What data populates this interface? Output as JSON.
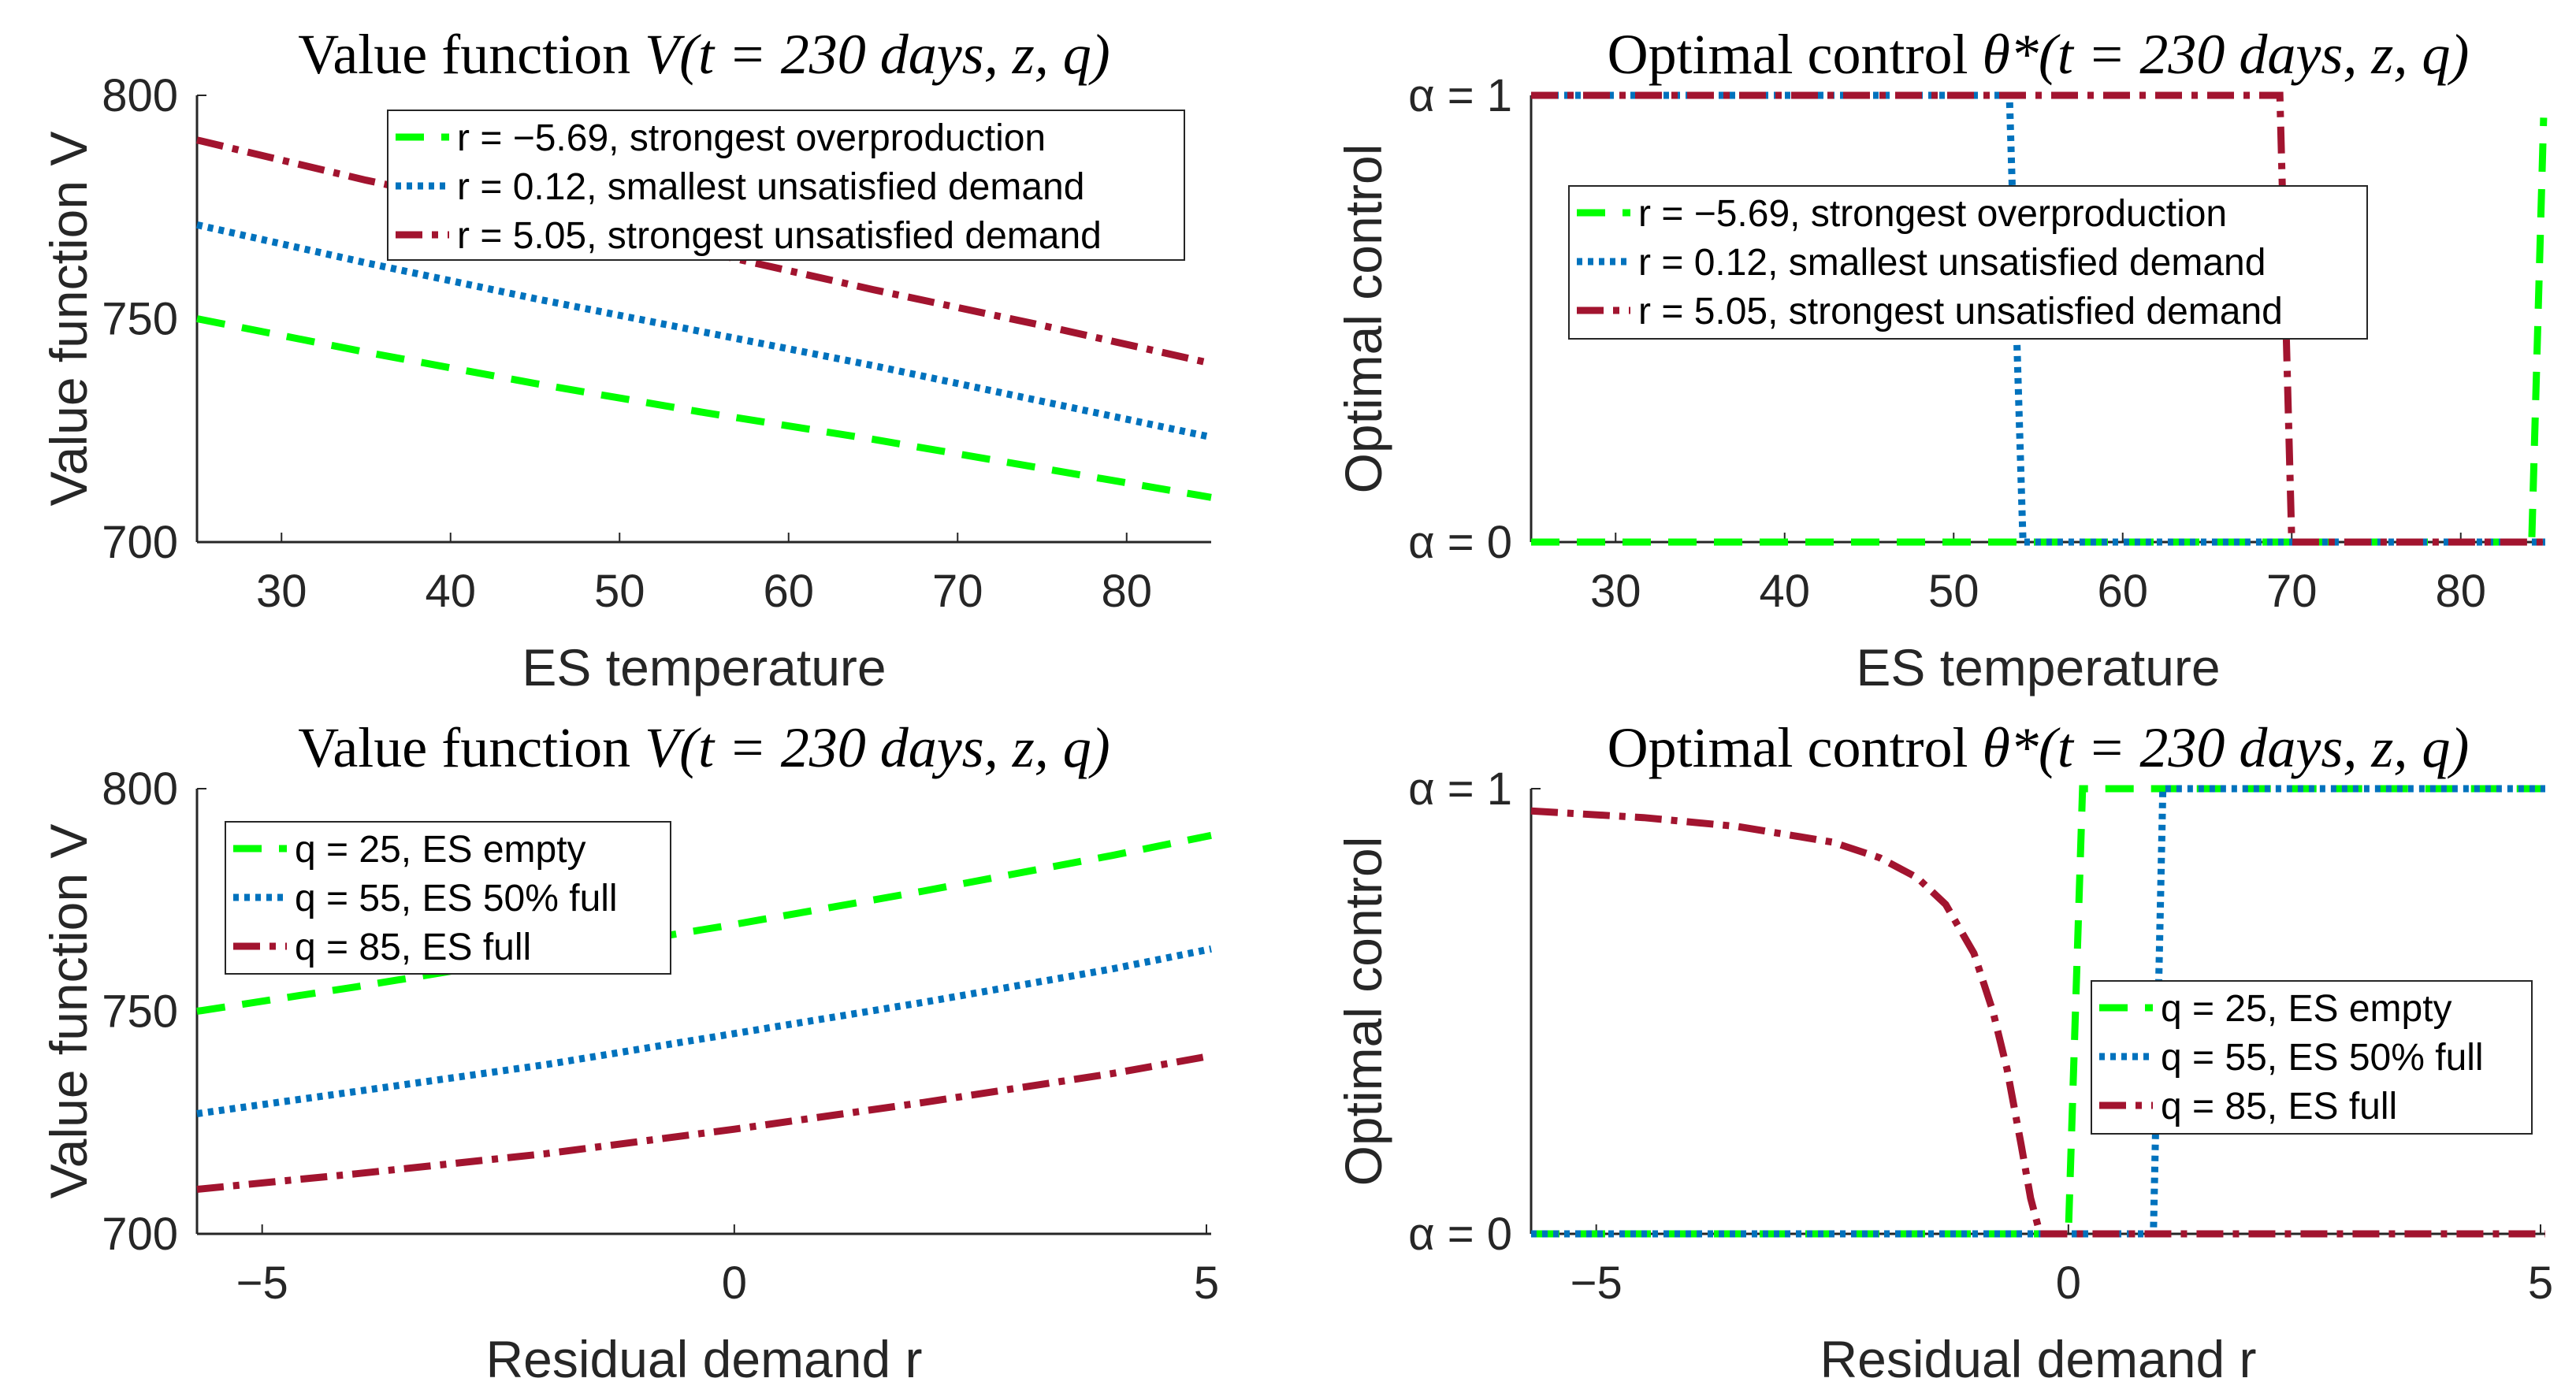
{
  "colors": {
    "green": "#00ff00",
    "blue": "#0072bd",
    "red": "#a2142f",
    "axis": "#262626"
  },
  "chart_data": [
    {
      "type": "line",
      "title": "Value function ",
      "title_math": "V(t = 230 days, z, q)",
      "xlabel": "ES temperature",
      "ylabel": "Value function V",
      "xlim": [
        25,
        85
      ],
      "ylim": [
        700,
        800
      ],
      "xticks": [
        30,
        40,
        50,
        60,
        70,
        80
      ],
      "xtick_labels": [
        "30",
        "40",
        "50",
        "60",
        "70",
        "80"
      ],
      "yticks": [
        700,
        750,
        800
      ],
      "ytick_labels": [
        "700",
        "750",
        "800"
      ],
      "legend_placement": "top-right",
      "series": [
        {
          "name": "r = −5.69, strongest overproduction",
          "style": "dashed",
          "color": "green",
          "x": [
            25,
            35,
            45,
            55,
            65,
            75,
            85
          ],
          "y": [
            750,
            742.5,
            735.5,
            729,
            723,
            716.5,
            710
          ]
        },
        {
          "name": "r = 0.12, smallest unsatisfied demand",
          "style": "dotted",
          "color": "blue",
          "x": [
            25,
            35,
            45,
            55,
            65,
            75,
            85
          ],
          "y": [
            771,
            762.5,
            754.5,
            747,
            739.5,
            731.5,
            723.5
          ]
        },
        {
          "name": "r = 5.05, strongest unsatisfied demand",
          "style": "dashdot",
          "color": "red",
          "x": [
            25,
            35,
            45,
            55,
            65,
            75,
            85
          ],
          "y": [
            790,
            781,
            773,
            765,
            756.5,
            748.5,
            740
          ]
        }
      ]
    },
    {
      "type": "line",
      "title": "Optimal control ",
      "title_math": "θ*(t = 230 days, z, q)",
      "xlabel": "ES temperature",
      "ylabel": "Optimal control",
      "xlim": [
        25,
        85
      ],
      "ylim": [
        0,
        1
      ],
      "xticks": [
        30,
        40,
        50,
        60,
        70,
        80
      ],
      "xtick_labels": [
        "30",
        "40",
        "50",
        "60",
        "70",
        "80"
      ],
      "yticks": [
        0,
        1
      ],
      "ytick_labels": [
        "α = 0",
        "α = 1"
      ],
      "legend_placement": "center",
      "series": [
        {
          "name": "r = −5.69, strongest overproduction",
          "style": "dashed",
          "color": "green",
          "x": [
            25,
            84.2,
            84.9
          ],
          "y": [
            0,
            0,
            0.95
          ]
        },
        {
          "name": "r = 0.12, smallest unsatisfied demand",
          "style": "dotted",
          "color": "blue",
          "x": [
            25,
            53.3,
            54.1,
            85
          ],
          "y": [
            1,
            1,
            0,
            0
          ]
        },
        {
          "name": "r = 5.05, strongest unsatisfied demand",
          "style": "dashdot",
          "color": "red",
          "x": [
            25,
            69.3,
            70,
            85
          ],
          "y": [
            1,
            1,
            0,
            0
          ]
        }
      ]
    },
    {
      "type": "line",
      "title": "Value function ",
      "title_math": "V(t = 230 days, z, q)",
      "xlabel": "Residual demand r",
      "ylabel": "Value function V",
      "xlim": [
        -5.69,
        5.05
      ],
      "ylim": [
        700,
        800
      ],
      "xticks": [
        -5,
        0,
        5
      ],
      "xtick_labels": [
        "−5",
        "0",
        "5"
      ],
      "yticks": [
        700,
        750,
        800
      ],
      "ytick_labels": [
        "700",
        "750",
        "800"
      ],
      "legend_placement": "top-left",
      "series": [
        {
          "name": "q = 25, ES empty",
          "style": "dashed",
          "color": "green",
          "x": [
            -5.69,
            -4,
            -2,
            0,
            2,
            4,
            5.05
          ],
          "y": [
            750,
            755.5,
            762.5,
            769.5,
            777,
            785,
            789.5
          ]
        },
        {
          "name": "q = 55, ES 50% full",
          "style": "dotted",
          "color": "blue",
          "x": [
            -5.69,
            -4,
            -2,
            0,
            2,
            4,
            5.05
          ],
          "y": [
            727,
            732,
            738,
            745,
            752,
            759.5,
            764
          ]
        },
        {
          "name": "q = 85, ES full",
          "style": "dashdot",
          "color": "red",
          "x": [
            -5.69,
            -4,
            -2,
            0,
            2,
            4,
            5.05
          ],
          "y": [
            710,
            713.5,
            718,
            723.5,
            729.5,
            736,
            740
          ]
        }
      ]
    },
    {
      "type": "line",
      "title": "Optimal control ",
      "title_math": "θ*(t = 230 days, z, q)",
      "xlabel": "Residual demand r",
      "ylabel": "Optimal control",
      "xlim": [
        -5.69,
        5.05
      ],
      "ylim": [
        0,
        1
      ],
      "xticks": [
        -5,
        0,
        5
      ],
      "xtick_labels": [
        "−5",
        "0",
        "5"
      ],
      "yticks": [
        0,
        1
      ],
      "ytick_labels": [
        "α = 0",
        "α = 1"
      ],
      "legend_placement": "bottom-right",
      "series": [
        {
          "name": "q = 25, ES empty",
          "style": "dashed",
          "color": "green",
          "x": [
            -5.69,
            0.0,
            0.15,
            5.05
          ],
          "y": [
            0,
            0,
            1,
            1
          ]
        },
        {
          "name": "q = 55, ES 50% full",
          "style": "dotted",
          "color": "blue",
          "x": [
            -5.69,
            0.9,
            1.0,
            5.05
          ],
          "y": [
            0,
            0,
            1,
            1
          ]
        },
        {
          "name": "q = 85, ES full",
          "style": "dashdot",
          "color": "red",
          "x": [
            -5.69,
            -4.5,
            -3.5,
            -2.5,
            -2.0,
            -1.6,
            -1.3,
            -1.0,
            -0.8,
            -0.65,
            -0.5,
            -0.4,
            -0.3,
            5.05
          ],
          "y": [
            0.95,
            0.935,
            0.915,
            0.88,
            0.845,
            0.8,
            0.74,
            0.63,
            0.5,
            0.37,
            0.2,
            0.08,
            0,
            0
          ]
        }
      ]
    }
  ]
}
